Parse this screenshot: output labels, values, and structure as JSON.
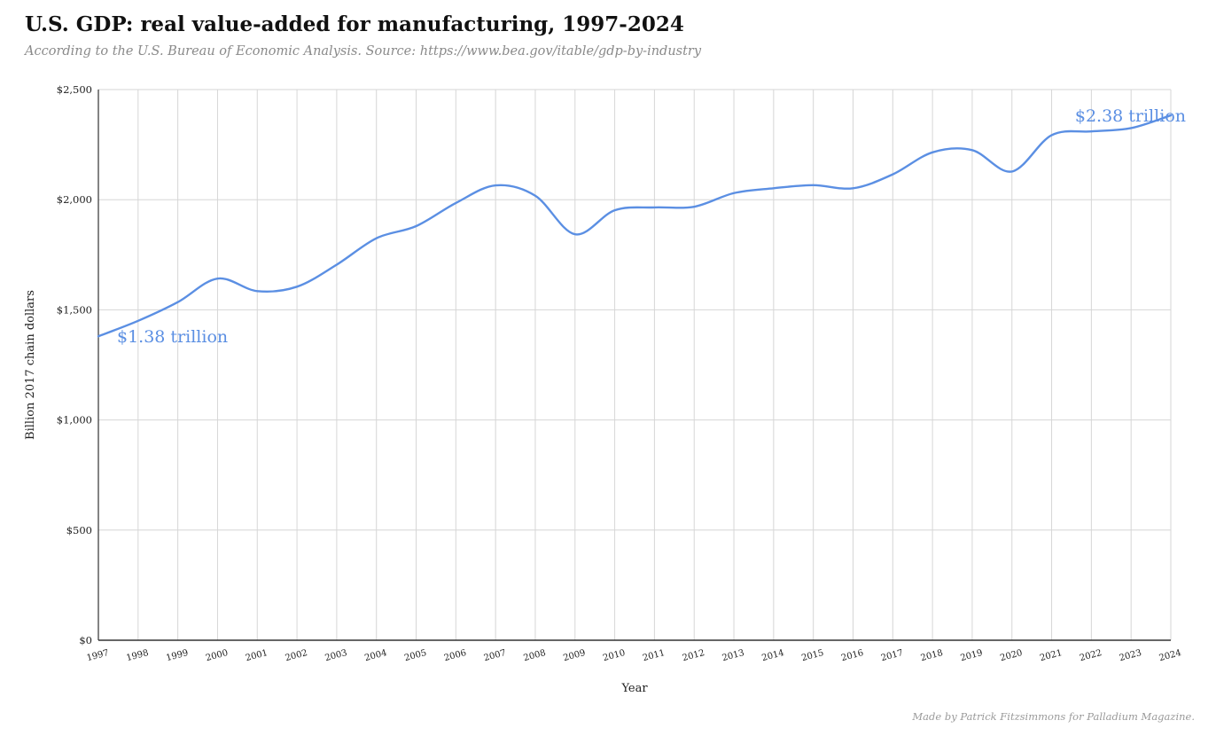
{
  "title": "U.S. GDP: real value-added for manufacturing, 1997-2024",
  "subtitle": "According to the U.S. Bureau of Economic Analysis. Source: https://www.bea.gov/itable/gdp-by-industry",
  "footer": "Made by Patrick Fitzsimmons for Palladium Magazine.",
  "colors": {
    "line": "#5b8fe3",
    "grid": "#d6d6d6",
    "axis": "#333333"
  },
  "chart_data": {
    "type": "line",
    "title": "U.S. GDP: real value-added for manufacturing, 1997-2024",
    "subtitle": "According to the U.S. Bureau of Economic Analysis. Source: https://www.bea.gov/itable/gdp-by-industry",
    "xlabel": "Year",
    "ylabel": "Billion 2017 chain dollars",
    "ylim": [
      0,
      2500
    ],
    "grid": true,
    "y_ticks": [
      0,
      500,
      1000,
      1500,
      2000,
      2500
    ],
    "y_tick_labels": [
      "$0",
      "$500",
      "$1,000",
      "$1,500",
      "$2,000",
      "$2,500"
    ],
    "x": [
      "1997",
      "1998",
      "1999",
      "2000",
      "2001",
      "2002",
      "2003",
      "2004",
      "2005",
      "2006",
      "2007",
      "2008",
      "2009",
      "2010",
      "2011",
      "2012",
      "2013",
      "2014",
      "2015",
      "2016",
      "2017",
      "2018",
      "2019",
      "2020",
      "2021",
      "2022",
      "2023",
      "2024"
    ],
    "series": [
      {
        "values": [
          1380,
          1450,
          1535,
          1642,
          1585,
          1605,
          1705,
          1825,
          1880,
          1985,
          2065,
          2018,
          1843,
          1952,
          1965,
          1968,
          2030,
          2052,
          2066,
          2052,
          2115,
          2215,
          2225,
          2128,
          2293,
          2310,
          2325,
          2383
        ]
      }
    ],
    "annotations": [
      {
        "text": "$1.38 trillion",
        "x": "1997",
        "y": 1380
      },
      {
        "text": "$2.38 trillion",
        "x": "2024",
        "y": 2383
      }
    ]
  }
}
